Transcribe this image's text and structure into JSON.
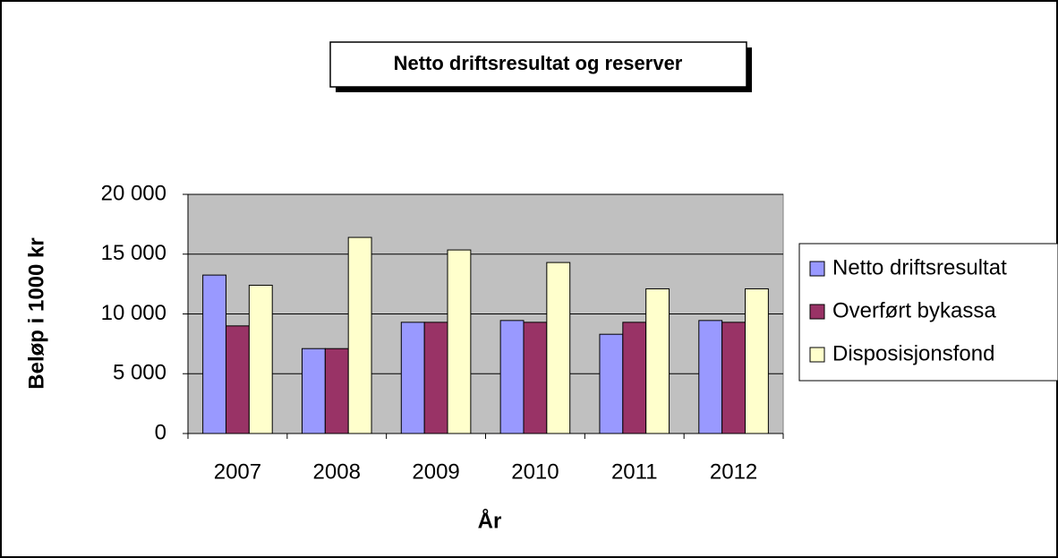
{
  "chart_data": {
    "type": "bar",
    "title": "Netto driftsresultat og reserver",
    "x_label": "År",
    "y_label": "Beløp i 1000 kr",
    "categories": [
      "2007",
      "2008",
      "2009",
      "2010",
      "2011",
      "2012"
    ],
    "series": [
      {
        "name": "Netto driftsresultat",
        "color": "#9999ff",
        "values": [
          13250,
          7100,
          9300,
          9450,
          8300,
          9450
        ]
      },
      {
        "name": "Overført bykassa",
        "color": "#993366",
        "values": [
          9000,
          7100,
          9300,
          9300,
          9300,
          9300
        ]
      },
      {
        "name": "Disposisjonsfond",
        "color": "#ffffcc",
        "values": [
          12400,
          16400,
          15350,
          14300,
          12100,
          12100
        ]
      }
    ],
    "ylim": [
      0,
      20000
    ],
    "yticks": [
      0,
      {
        "value": 5000,
        "label": "5 000"
      },
      {
        "value": 10000,
        "label": "10 000"
      },
      {
        "value": 15000,
        "label": "15 000"
      },
      {
        "value": 20000,
        "label": "20 000"
      }
    ],
    "grid": true,
    "legend": "right"
  }
}
